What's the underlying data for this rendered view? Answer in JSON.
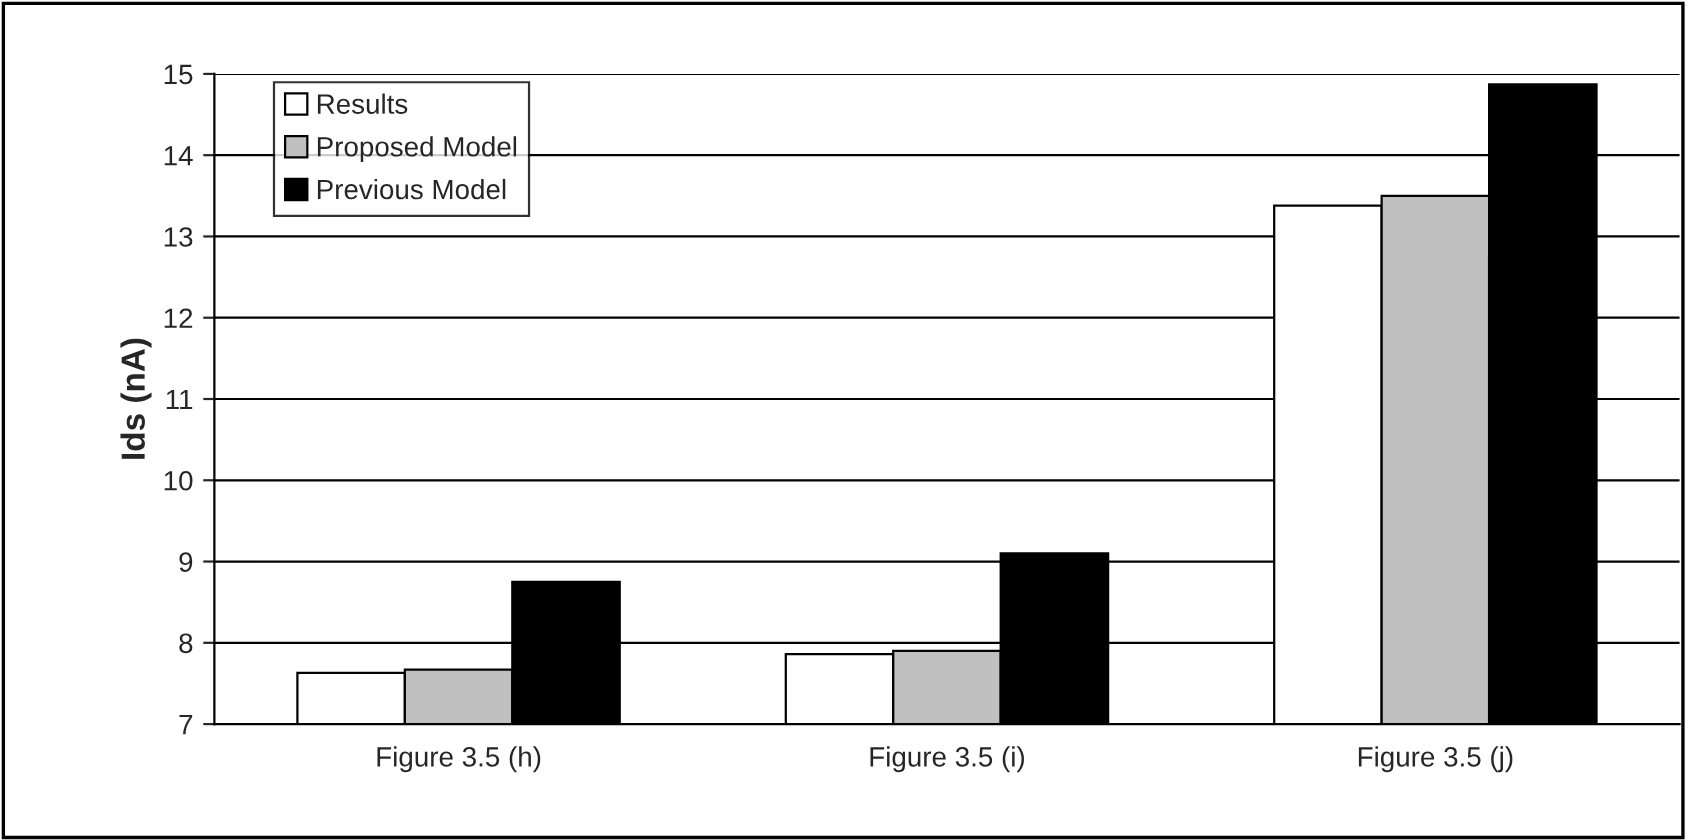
{
  "chart_data": {
    "type": "bar",
    "ylabel": "Ids (nA)",
    "categories": [
      "Figure 3.5 (h)",
      "Figure 3.5 (i)",
      "Figure 3.5 (j)"
    ],
    "series": [
      {
        "name": "Results",
        "color": "#ffffff",
        "values": [
          7.63,
          7.86,
          13.38
        ]
      },
      {
        "name": "Proposed Model",
        "color": "#c0c0c0",
        "values": [
          7.67,
          7.9,
          13.5
        ]
      },
      {
        "name": "Previous Model",
        "color": "#000000",
        "values": [
          8.75,
          9.1,
          14.87
        ]
      }
    ],
    "ylim": [
      7,
      15
    ],
    "yticks": [
      7,
      8,
      9,
      10,
      11,
      12,
      13,
      14,
      15
    ],
    "grid": "y",
    "legend": "top left"
  }
}
